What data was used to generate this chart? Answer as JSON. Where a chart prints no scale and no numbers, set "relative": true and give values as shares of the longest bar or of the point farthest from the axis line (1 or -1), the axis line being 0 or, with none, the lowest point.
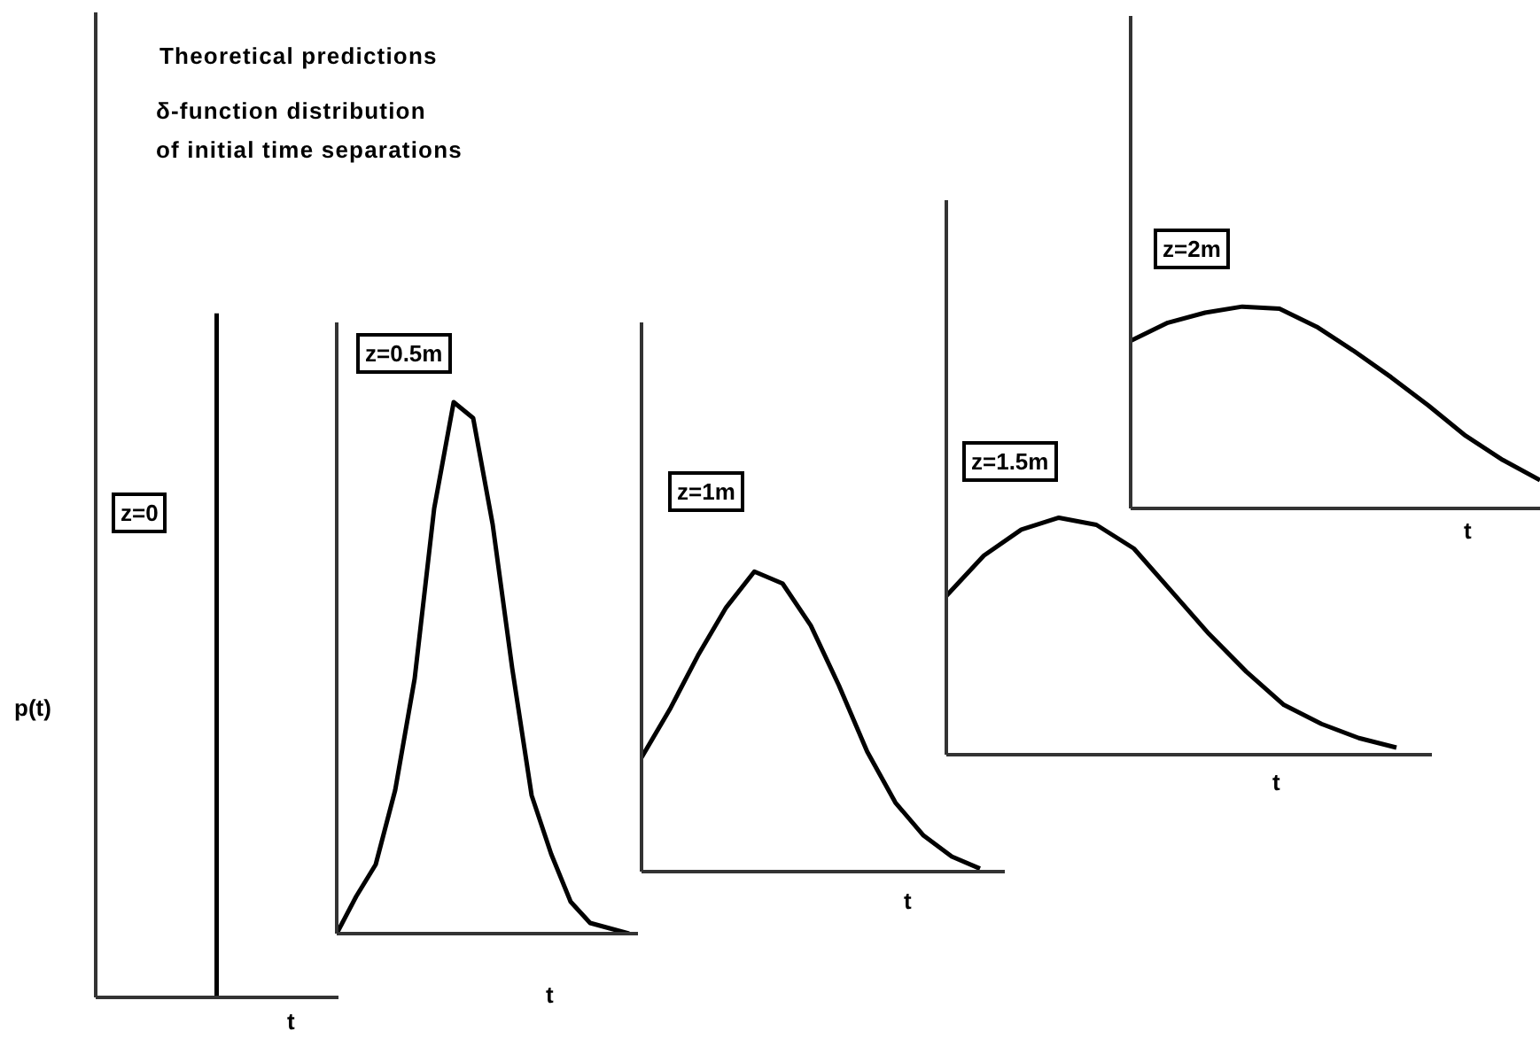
{
  "chart_data": [
    {
      "type": "bar",
      "relative": true,
      "title": "Theoretical predictions",
      "subtitle": "δ-function distribution\nof initial time separations",
      "ylabel": "p(t)",
      "xlabel": "t",
      "annotations": [
        "z=0"
      ],
      "categories": [
        null
      ],
      "values": [
        1
      ],
      "color": "#000000"
    },
    {
      "type": "line",
      "relative": true,
      "xlabel": "t",
      "annotations": [
        "z=0.5m"
      ],
      "categories": [
        null,
        null,
        null,
        null,
        null,
        null,
        null,
        null,
        null,
        null,
        null,
        null,
        null,
        null,
        null,
        null
      ],
      "values": [
        0,
        0.07,
        0.13,
        0.27,
        0.48,
        0.8,
        1,
        0.97,
        0.77,
        0.5,
        0.26,
        0.15,
        0.06,
        0.02,
        0.01,
        0
      ],
      "color": "#000000"
    },
    {
      "type": "line",
      "relative": true,
      "xlabel": "t",
      "annotations": [
        "z=1m"
      ],
      "categories": [
        null,
        null,
        null,
        null,
        null,
        null,
        null,
        null,
        null,
        null,
        null,
        null,
        null
      ],
      "values": [
        0.38,
        0.54,
        0.72,
        0.88,
        1,
        0.96,
        0.82,
        0.62,
        0.4,
        0.23,
        0.12,
        0.05,
        0.01
      ],
      "color": "#000000"
    },
    {
      "type": "line",
      "relative": true,
      "xlabel": "t",
      "annotations": [
        "z=1.5m"
      ],
      "categories": [
        null,
        null,
        null,
        null,
        null,
        null,
        null,
        null,
        null,
        null,
        null,
        null,
        null
      ],
      "values": [
        0.67,
        0.84,
        0.95,
        1,
        0.97,
        0.87,
        0.69,
        0.51,
        0.35,
        0.21,
        0.13,
        0.07,
        0.03
      ],
      "color": "#000000"
    },
    {
      "type": "line",
      "relative": true,
      "xlabel": "t",
      "annotations": [
        "z=2m"
      ],
      "categories": [
        null,
        null,
        null,
        null,
        null,
        null,
        null,
        null,
        null,
        null,
        null,
        null
      ],
      "values": [
        0.83,
        0.92,
        0.97,
        1,
        0.99,
        0.9,
        0.78,
        0.65,
        0.51,
        0.36,
        0.24,
        0.14
      ],
      "color": "#000000"
    }
  ]
}
